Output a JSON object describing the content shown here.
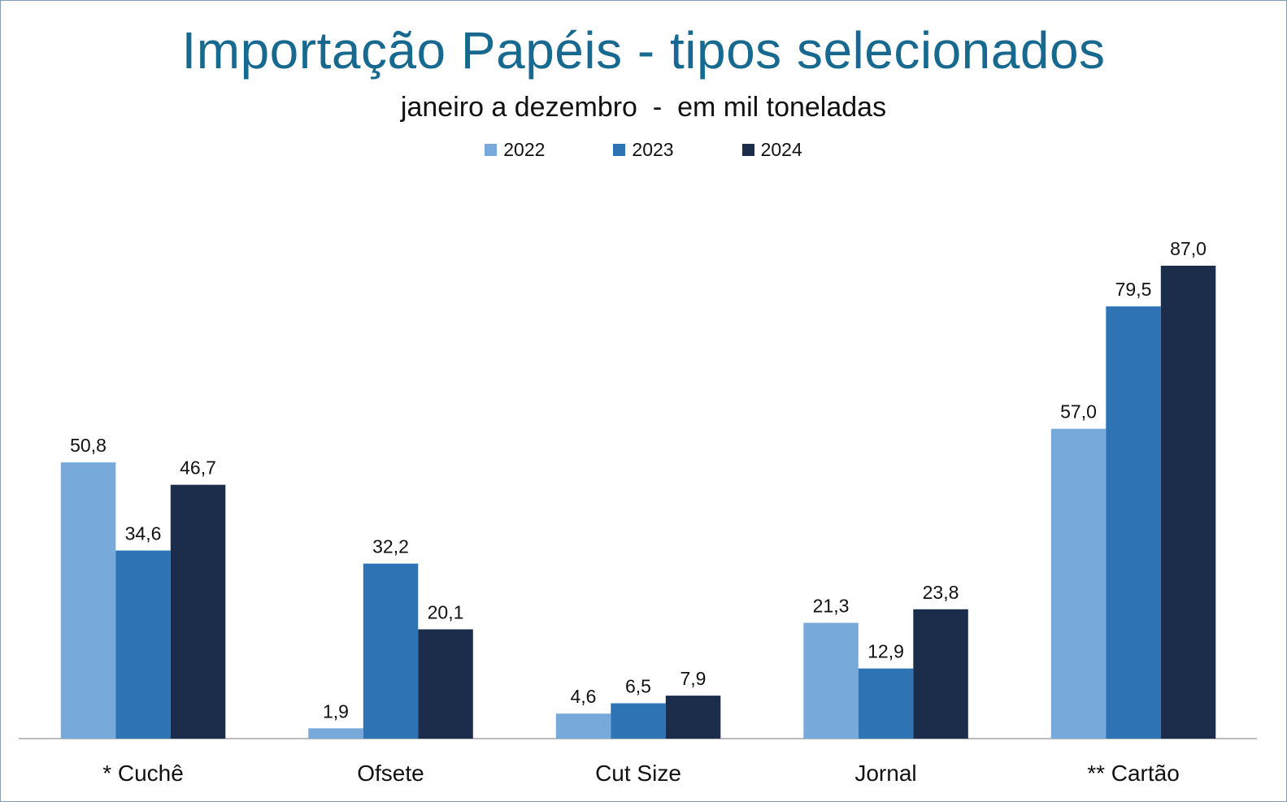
{
  "chart_data": {
    "type": "bar",
    "title": "Importação Papéis - tipos selecionados",
    "subtitle": "janeiro a dezembro  -  em mil toneladas",
    "categories": [
      "* Cuchê",
      "Ofsete",
      "Cut Size",
      "Jornal",
      "** Cartão"
    ],
    "series": [
      {
        "name": "2022",
        "color": "#77aadb",
        "values": [
          50.8,
          1.9,
          4.6,
          21.3,
          57.0
        ],
        "labels": [
          "50,8",
          "1,9",
          "4,6",
          "21,3",
          "57,0"
        ]
      },
      {
        "name": "2023",
        "color": "#2e74b5",
        "values": [
          34.6,
          32.2,
          6.5,
          12.9,
          79.5
        ],
        "labels": [
          "34,6",
          "32,2",
          "6,5",
          "12,9",
          "79,5"
        ]
      },
      {
        "name": "2024",
        "color": "#1c2d4c",
        "values": [
          46.7,
          20.1,
          7.9,
          23.8,
          87.0
        ],
        "labels": [
          "46,7",
          "20,1",
          "7,9",
          "23,8",
          "87,0"
        ]
      }
    ],
    "ylim": [
      0,
      90
    ],
    "grid": false,
    "legend_position": "top-center"
  }
}
